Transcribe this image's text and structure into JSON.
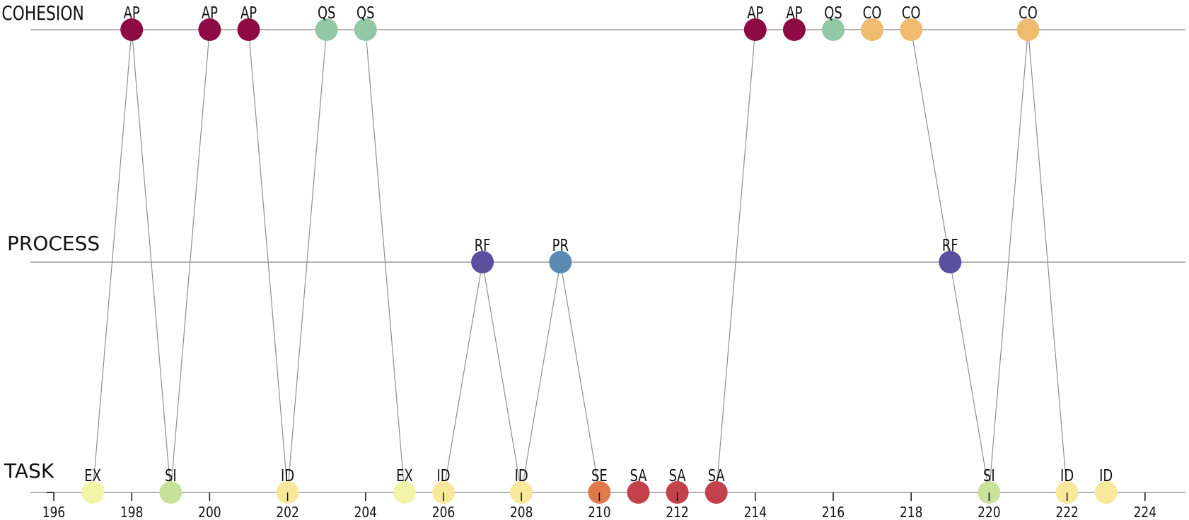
{
  "chart_data": {
    "type": "scatter",
    "title": "",
    "xlabel": "",
    "ylabel": "",
    "xlim": [
      196,
      226
    ],
    "x_ticks": [
      196,
      198,
      200,
      202,
      204,
      206,
      208,
      210,
      212,
      214,
      216,
      218,
      220,
      222,
      224
    ],
    "categories": [
      "COHESION",
      "PROCESS",
      "TASK"
    ],
    "grid": false,
    "legend": "none",
    "colors": {
      "AP": "#8e0a45",
      "QS": "#92c8a6",
      "CO": "#efbb6e",
      "RF": "#5b50a0",
      "PR": "#5a8ab4",
      "EX": "#f0f5a7",
      "SI": "#c8e29a",
      "ID": "#f8e89b",
      "SE": "#e07a4a",
      "SA": "#c1424b"
    },
    "points": [
      {
        "x": 197,
        "band": "TASK",
        "code": "EX"
      },
      {
        "x": 198,
        "band": "COHESION",
        "code": "AP"
      },
      {
        "x": 199,
        "band": "TASK",
        "code": "SI"
      },
      {
        "x": 200,
        "band": "COHESION",
        "code": "AP"
      },
      {
        "x": 201,
        "band": "COHESION",
        "code": "AP"
      },
      {
        "x": 202,
        "band": "TASK",
        "code": "ID"
      },
      {
        "x": 203,
        "band": "COHESION",
        "code": "QS"
      },
      {
        "x": 204,
        "band": "COHESION",
        "code": "QS"
      },
      {
        "x": 205,
        "band": "TASK",
        "code": "EX"
      },
      {
        "x": 206,
        "band": "TASK",
        "code": "ID"
      },
      {
        "x": 207,
        "band": "PROCESS",
        "code": "RF"
      },
      {
        "x": 208,
        "band": "TASK",
        "code": "ID"
      },
      {
        "x": 209,
        "band": "PROCESS",
        "code": "PR"
      },
      {
        "x": 210,
        "band": "TASK",
        "code": "SE"
      },
      {
        "x": 211,
        "band": "TASK",
        "code": "SA"
      },
      {
        "x": 212,
        "band": "TASK",
        "code": "SA"
      },
      {
        "x": 213,
        "band": "TASK",
        "code": "SA"
      },
      {
        "x": 214,
        "band": "COHESION",
        "code": "AP"
      },
      {
        "x": 215,
        "band": "COHESION",
        "code": "AP"
      },
      {
        "x": 216,
        "band": "COHESION",
        "code": "QS"
      },
      {
        "x": 217,
        "band": "COHESION",
        "code": "CO"
      },
      {
        "x": 218,
        "band": "COHESION",
        "code": "CO"
      },
      {
        "x": 219,
        "band": "PROCESS",
        "code": "RF"
      },
      {
        "x": 220,
        "band": "TASK",
        "code": "SI"
      },
      {
        "x": 221,
        "band": "COHESION",
        "code": "CO"
      },
      {
        "x": 222,
        "band": "TASK",
        "code": "ID"
      },
      {
        "x": 223,
        "band": "TASK",
        "code": "ID"
      }
    ]
  }
}
